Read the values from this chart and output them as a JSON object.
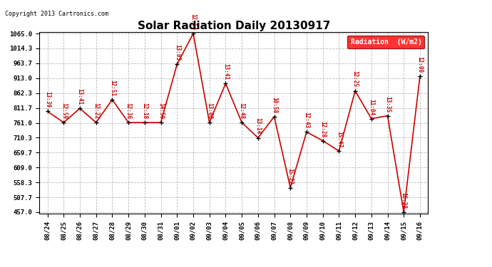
{
  "title": "Solar Radiation Daily 20130917",
  "copyright": "Copyright 2013 Cartronics.com",
  "legend_label": "Radiation  (W/m2)",
  "background_color": "#ffffff",
  "plot_background": "#ffffff",
  "grid_color": "#bbbbbb",
  "line_color": "#cc0000",
  "point_color": "#000000",
  "label_color": "#cc0000",
  "dates": [
    "08/24",
    "08/25",
    "08/26",
    "08/27",
    "08/28",
    "08/29",
    "08/30",
    "08/31",
    "09/01",
    "09/02",
    "09/03",
    "09/04",
    "09/05",
    "09/06",
    "09/07",
    "09/08",
    "09/09",
    "09/10",
    "09/11",
    "09/12",
    "09/13",
    "09/14",
    "09/15",
    "09/16"
  ],
  "values": [
    800,
    762,
    810,
    762,
    840,
    762,
    762,
    762,
    960,
    1065,
    762,
    895,
    762,
    710,
    782,
    540,
    730,
    700,
    665,
    870,
    775,
    785,
    457,
    920
  ],
  "labels": [
    "13:39",
    "12:59",
    "13:41",
    "12:22",
    "12:51",
    "12:36",
    "12:18",
    "14:50",
    "13:03",
    "12:54",
    "13:00",
    "13:41",
    "12:48",
    "13:14",
    "10:58",
    "15:22",
    "12:43",
    "12:28",
    "15:47",
    "12:25",
    "11:04",
    "13:35",
    "16:28",
    "12:00"
  ],
  "ymin": 457.0,
  "ymax": 1065.0,
  "yticks": [
    457.0,
    507.7,
    558.3,
    609.0,
    659.7,
    710.3,
    761.0,
    811.7,
    862.3,
    913.0,
    963.7,
    1014.3,
    1065.0
  ]
}
